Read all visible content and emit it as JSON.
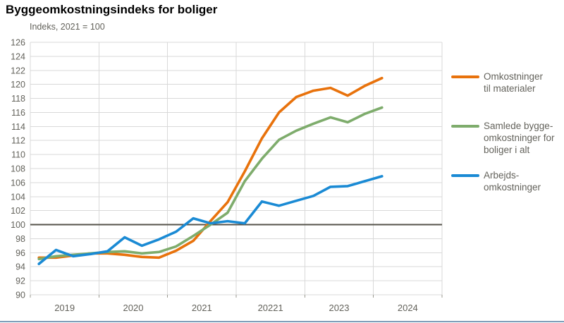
{
  "header": {
    "title": "Byggeomkostningsindeks for boliger",
    "subtitle": "Indeks, 2021 = 100"
  },
  "colors": {
    "materials": "#e8720c",
    "total": "#7eac6c",
    "labour": "#1a8ad4",
    "grid": "#d9d9d9",
    "reference_line": "#55534a",
    "tick_text": "#63625b",
    "axis_tick": "#9a998f",
    "bottom_strip": "#7d9db8"
  },
  "legend": {
    "position": "right",
    "items": [
      {
        "label": "Omkostninger\ntil materialer",
        "series": "materials"
      },
      {
        "label": "Samlede bygge-\nomkostninger for\nboliger i alt",
        "series": "total"
      },
      {
        "label": "Arbejds-\nomkostninger",
        "series": "labour"
      }
    ]
  },
  "chart_data": {
    "type": "line",
    "title": "Byggeomkostningsindeks for boliger",
    "subtitle": "Indeks, 2021 = 100",
    "x_quarters": [
      "2019K1",
      "2019K2",
      "2019K3",
      "2019K4",
      "2020K1",
      "2020K2",
      "2020K3",
      "2020K4",
      "2021K1",
      "2021K2",
      "2021K3",
      "2021K4",
      "2022K1",
      "2022K2",
      "2022K3",
      "2022K4",
      "2023K1",
      "2023K2",
      "2023K3",
      "2023K4",
      "2024K1"
    ],
    "xtick_labels": [
      "2019",
      "2020",
      "2021",
      "20221",
      "2023",
      "2024"
    ],
    "ylim": [
      90,
      126
    ],
    "ytick_step": 2,
    "reference_line": 100,
    "grid": true,
    "legend_position": "right",
    "series": [
      {
        "name": "Omkostninger til materialer",
        "series_key": "materials",
        "values": [
          95.3,
          95.3,
          95.6,
          95.9,
          95.9,
          95.7,
          95.4,
          95.3,
          96.3,
          97.7,
          100.5,
          103.2,
          107.6,
          112.3,
          116.0,
          118.2,
          119.1,
          119.5,
          118.4,
          119.8,
          120.9
        ]
      },
      {
        "name": "Samlede byggeomkostninger for boliger i alt",
        "series_key": "total",
        "values": [
          95.1,
          95.5,
          95.7,
          95.9,
          96.1,
          96.2,
          95.9,
          96.1,
          96.9,
          98.4,
          100.0,
          101.7,
          106.2,
          109.4,
          112.1,
          113.4,
          114.4,
          115.3,
          114.6,
          115.8,
          116.7
        ]
      },
      {
        "name": "Arbejdsomkostninger",
        "series_key": "labour",
        "values": [
          94.4,
          96.4,
          95.5,
          95.8,
          96.2,
          98.2,
          97.0,
          97.9,
          99.0,
          100.9,
          100.2,
          100.5,
          100.2,
          103.3,
          102.7,
          103.4,
          104.1,
          105.4,
          105.5,
          106.2,
          106.9
        ]
      }
    ]
  }
}
